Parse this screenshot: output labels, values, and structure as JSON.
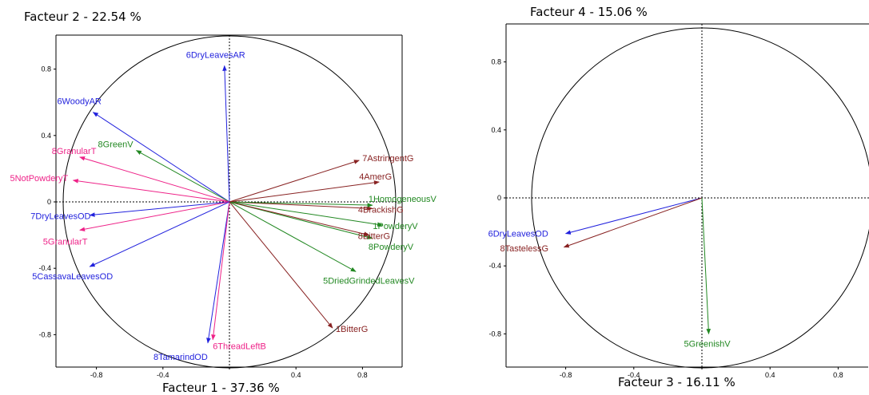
{
  "chart_data": [
    {
      "type": "scatter",
      "title": "",
      "xlabel": "Facteur 1  -  37.36 %",
      "ylabel": "Facteur 2  -  22.54 %",
      "xlim": [
        -1,
        1
      ],
      "ylim": [
        -1,
        1
      ],
      "x_ticks": [
        -0.8,
        -0.4,
        0,
        0.4,
        0.8
      ],
      "x_tick_labels": [
        "-0.8",
        "-0.4",
        "0",
        "0.4",
        "0.8"
      ],
      "y_ticks": [
        0.8,
        0.4,
        0,
        -0.4,
        -0.8
      ],
      "y_tick_labels": [
        "0.8",
        "0.4",
        "0",
        "-0.4",
        "-0.8"
      ],
      "unit_circle": true,
      "grid": false,
      "vectors": [
        {
          "label": "6DryLeavesAR",
          "x": -0.03,
          "y": 0.82,
          "color": "#2222dd"
        },
        {
          "label": "6WoodyAR",
          "x": -0.82,
          "y": 0.54,
          "color": "#2222dd"
        },
        {
          "label": "8GreenV",
          "x": -0.56,
          "y": 0.31,
          "color": "#228822"
        },
        {
          "label": "8GranularT",
          "x": -0.9,
          "y": 0.27,
          "color": "#ee2288"
        },
        {
          "label": "5NotPowderyT",
          "x": -0.94,
          "y": 0.13,
          "color": "#ee2288"
        },
        {
          "label": "7DryLeavesOD",
          "x": -0.84,
          "y": -0.08,
          "color": "#2222dd"
        },
        {
          "label": "5GranularT",
          "x": -0.9,
          "y": -0.17,
          "color": "#ee2288"
        },
        {
          "label": "5CassavaLeavesOD",
          "x": -0.84,
          "y": -0.39,
          "color": "#2222dd"
        },
        {
          "label": "8TamarindOD",
          "x": -0.13,
          "y": -0.85,
          "color": "#2222dd"
        },
        {
          "label": "6ThreadLeftB",
          "x": -0.1,
          "y": -0.83,
          "color": "#ee2288"
        },
        {
          "label": "1BitterG",
          "x": 0.62,
          "y": -0.76,
          "color": "#882222"
        },
        {
          "label": "5DriedGrindedLeavesV",
          "x": 0.76,
          "y": -0.42,
          "color": "#228822"
        },
        {
          "label": "8PowderyV",
          "x": 0.86,
          "y": -0.22,
          "color": "#228822"
        },
        {
          "label": "8BitterG",
          "x": 0.84,
          "y": -0.2,
          "color": "#882222"
        },
        {
          "label": "1PowderyV",
          "x": 0.92,
          "y": -0.14,
          "color": "#228822"
        },
        {
          "label": "4BrackishG",
          "x": 0.86,
          "y": -0.04,
          "color": "#882222"
        },
        {
          "label": "1HomogeneousV",
          "x": 0.86,
          "y": -0.02,
          "color": "#228822"
        },
        {
          "label": "4AmerG",
          "x": 0.9,
          "y": 0.12,
          "color": "#882222"
        },
        {
          "label": "7AstringentG",
          "x": 0.78,
          "y": 0.25,
          "color": "#882222"
        }
      ]
    },
    {
      "type": "scatter",
      "title": "",
      "xlabel": "Facteur 3  -  16.11 %",
      "ylabel": "Facteur 4  -  15.06 %",
      "xlim": [
        -1,
        1
      ],
      "ylim": [
        -1,
        1
      ],
      "x_ticks": [
        -0.8,
        -0.4,
        0,
        0.4,
        0.8
      ],
      "x_tick_labels": [
        "-0.8",
        "-0.4",
        "0",
        "0.4",
        "0.8"
      ],
      "y_ticks": [
        0.8,
        0.4,
        0,
        -0.4,
        -0.8
      ],
      "y_tick_labels": [
        "0.8",
        "0.4",
        "0",
        "-0.4",
        "-0.8"
      ],
      "unit_circle": true,
      "grid": false,
      "vectors": [
        {
          "label": "6DryLeavesOD",
          "x": -0.8,
          "y": -0.21,
          "color": "#2222dd"
        },
        {
          "label": "8TastelessG",
          "x": -0.81,
          "y": -0.29,
          "color": "#882222"
        },
        {
          "label": "5GreenishV",
          "x": 0.04,
          "y": -0.8,
          "color": "#228822"
        }
      ]
    }
  ]
}
